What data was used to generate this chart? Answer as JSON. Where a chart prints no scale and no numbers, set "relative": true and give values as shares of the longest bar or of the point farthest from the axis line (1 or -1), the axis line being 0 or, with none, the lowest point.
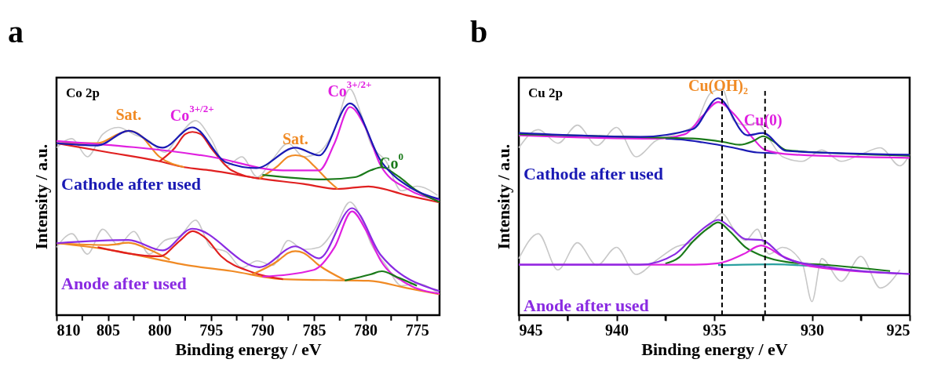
{
  "chart_data": [
    {
      "type": "line",
      "title": "a",
      "xlabel": "Binding energy / eV",
      "ylabel": "Intensity / a.u.",
      "relative": true,
      "grid": false,
      "tick_labels": "x",
      "xlim": [
        810,
        772.8
      ],
      "xticks": [
        810,
        {
          "value": 807.5,
          "label": null
        },
        805,
        {
          "value": 802.5,
          "label": null
        },
        800,
        {
          "value": 797.5,
          "label": null
        },
        795,
        {
          "value": 792.5,
          "label": null
        },
        790,
        {
          "value": 787.5,
          "label": null
        },
        785,
        {
          "value": 782.5,
          "label": null
        },
        780,
        {
          "value": 777.5,
          "label": null
        },
        775
      ],
      "annotations": [
        "Co 2p",
        {
          "text": "Sat.",
          "x": 803,
          "y": 0.815
        },
        {
          "text": "Co$^{3+/2+}$",
          "x": 796.8,
          "y": 0.81
        },
        {
          "text": "Sat.",
          "x": 786.8,
          "y": 0.707
        },
        {
          "text": "Co$^{3+/2+}$",
          "x": 781.5,
          "y": 0.92
        },
        {
          "text": "Co$^{0}$",
          "x": 776.5,
          "y": 0.6
        }
      ],
      "series": [
        {
          "color": "#c8c8c8",
          "x": [
            810,
            808.5,
            807,
            805.5,
            804,
            802.5,
            801,
            799.5,
            798,
            796.5,
            795,
            793.5,
            792,
            790.5,
            789,
            787.5,
            786,
            784.5,
            783,
            781.5,
            780.5,
            779.5,
            778,
            776.5,
            775,
            773
          ],
          "values": [
            0.74,
            0.78,
            0.7,
            0.8,
            0.83,
            0.8,
            0.77,
            0.72,
            0.8,
            0.86,
            0.78,
            0.66,
            0.7,
            0.61,
            0.69,
            0.76,
            0.7,
            0.72,
            0.82,
            1,
            0.9,
            0.76,
            0.68,
            0.55,
            0.57,
            0.53
          ]
        },
        {
          "color": "#c8c8c8",
          "x": [
            810,
            808.5,
            807,
            805.5,
            804,
            802.5,
            801,
            799.5,
            798,
            796.5,
            795,
            793.5,
            792,
            790.5,
            789,
            787.5,
            786,
            784.5,
            783,
            781.5,
            780.5,
            779.5,
            778,
            776.5,
            775,
            773
          ],
          "values": [
            0.3,
            0.36,
            0.27,
            0.38,
            0.31,
            0.37,
            0.27,
            0.33,
            0.35,
            0.42,
            0.3,
            0.28,
            0.21,
            0.24,
            0.22,
            0.33,
            0.29,
            0.3,
            0.38,
            0.5,
            0.44,
            0.32,
            0.22,
            0.13,
            0.14,
            0.1
          ]
        },
        {
          "color": "#e02020",
          "x": [
            810,
            805,
            800,
            797.6,
            795,
            790.3,
            786,
            782.7,
            779.7,
            776,
            772.8
          ],
          "values": [
            0.76,
            0.72,
            0.68,
            0.654,
            0.64,
            0.604,
            0.58,
            0.558,
            0.569,
            0.53,
            0.498
          ]
        },
        {
          "color": "#f08a24",
          "x": [
            810,
            806,
            804,
            803,
            802,
            800,
            797.6
          ],
          "values": [
            0.76,
            0.76,
            0.8,
            0.815,
            0.8,
            0.7,
            0.654
          ]
        },
        {
          "color": "#e02020",
          "x": [
            800,
            798.5,
            797.5,
            796.8,
            796,
            795,
            793,
            790.3
          ],
          "values": [
            0.68,
            0.74,
            0.8,
            0.81,
            0.8,
            0.74,
            0.64,
            0.604
          ]
        },
        {
          "color": "#f08a24",
          "x": [
            790.3,
            788.5,
            787.5,
            786.8,
            786,
            785,
            783.5,
            782.7
          ],
          "values": [
            0.604,
            0.66,
            0.7,
            0.707,
            0.7,
            0.66,
            0.59,
            0.558
          ]
        },
        {
          "color": "#e020e0",
          "x": [
            810,
            795,
            788,
            784.5,
            783,
            781.5,
            780,
            778.5,
            776,
            772.8
          ],
          "values": [
            0.77,
            0.7,
            0.64,
            0.64,
            0.76,
            0.92,
            0.83,
            0.66,
            0.56,
            0.51
          ]
        },
        {
          "color": "#1a7a1a",
          "x": [
            790,
            784,
            781,
            779.5,
            778.4,
            777,
            775,
            772.8
          ],
          "values": [
            0.62,
            0.6,
            0.61,
            0.64,
            0.654,
            0.62,
            0.55,
            0.5
          ]
        },
        {
          "name": "Cathode after used",
          "color": "#1a1ab4",
          "x": [
            810,
            806,
            803,
            799.7,
            796.8,
            793.5,
            790.6,
            786.8,
            784.5,
            781.5,
            778.4,
            775.5,
            772.8
          ],
          "values": [
            0.76,
            0.75,
            0.815,
            0.74,
            0.83,
            0.675,
            0.65,
            0.74,
            0.706,
            0.936,
            0.675,
            0.56,
            0.513
          ]
        },
        {
          "color": "#f08a24",
          "x": [
            810,
            805,
            800,
            797.6,
            793,
            788,
            784,
            779.7,
            776,
            772.8
          ],
          "values": [
            0.318,
            0.29,
            0.245,
            0.223,
            0.195,
            0.159,
            0.155,
            0.152,
            0.12,
            0.092
          ]
        },
        {
          "color": "#f08a24",
          "x": [
            810,
            805,
            803,
            801,
            799
          ],
          "values": [
            0.318,
            0.31,
            0.32,
            0.29,
            0.245
          ]
        },
        {
          "color": "#e02020",
          "x": [
            806,
            800,
            798,
            796.8,
            795.5,
            794,
            791,
            788
          ],
          "values": [
            0.3,
            0.26,
            0.33,
            0.371,
            0.34,
            0.26,
            0.19,
            0.159
          ]
        },
        {
          "color": "#f08a24",
          "x": [
            791,
            788.5,
            787.5,
            786.8,
            786,
            784.5,
            782
          ],
          "values": [
            0.18,
            0.24,
            0.275,
            0.283,
            0.275,
            0.22,
            0.155
          ]
        },
        {
          "color": "#e020e0",
          "x": [
            790,
            785,
            783,
            781.3,
            780,
            778.5,
            776,
            772.8
          ],
          "values": [
            0.17,
            0.2,
            0.3,
            0.459,
            0.38,
            0.24,
            0.14,
            0.095
          ]
        },
        {
          "color": "#1a7a1a",
          "x": [
            782,
            779.5,
            778.4,
            777,
            775
          ],
          "values": [
            0.153,
            0.18,
            0.194,
            0.17,
            0.13
          ]
        },
        {
          "name": "Anode after used",
          "color": "#8a2be2",
          "x": [
            810,
            803,
            799.7,
            796.8,
            790.3,
            786.8,
            784.5,
            781.3,
            778.5,
            772.8
          ],
          "values": [
            0.318,
            0.332,
            0.286,
            0.382,
            0.212,
            0.304,
            0.251,
            0.473,
            0.265,
            0.106
          ]
        }
      ]
    },
    {
      "type": "line",
      "title": "b",
      "xlabel": "Binding energy / eV",
      "ylabel": "Intensity / a.u.",
      "relative": true,
      "grid": false,
      "tick_labels": "x",
      "xlim": [
        945,
        925
      ],
      "xticks": [
        945,
        {
          "value": 942.5,
          "label": null
        },
        940,
        {
          "value": 937.5,
          "label": null
        },
        935,
        {
          "value": 932.5,
          "label": null
        },
        930,
        {
          "value": 927.5,
          "label": null
        },
        925
      ],
      "annotations": [
        "Cu 2p",
        {
          "text": "Cu(OH)₂",
          "x": 934.8,
          "y": 0.942
        },
        {
          "text": "Cu(0)",
          "x": 932.5,
          "y": 0.791
        }
      ],
      "ref_lines": [
        {
          "axis": "x",
          "value": 934.6,
          "line_style": "dashed",
          "color": "#000000"
        },
        {
          "axis": "x",
          "value": 932.4,
          "line_style": "dashed",
          "color": "#000000"
        }
      ],
      "series": [
        {
          "color": "#c8c8c8",
          "x": [
            945,
            944,
            943,
            942,
            941,
            940,
            939,
            938,
            937,
            936,
            935.2,
            934.6,
            934,
            933.4,
            932.8,
            932.2,
            931.5,
            930.5,
            929.5,
            928.5,
            927.5,
            926.5,
            925.5,
            925
          ],
          "values": [
            0.74,
            0.82,
            0.76,
            0.84,
            0.75,
            0.83,
            0.7,
            0.77,
            0.8,
            0.84,
            0.98,
            1,
            0.86,
            0.84,
            0.85,
            0.78,
            0.7,
            0.68,
            0.73,
            0.68,
            0.71,
            0.74,
            0.66,
            0.71
          ]
        },
        {
          "color": "#c8c8c8",
          "x": [
            945,
            944,
            943,
            942,
            941,
            940,
            939,
            938,
            937,
            936,
            935.2,
            934.6,
            934,
            933.4,
            932.8,
            932.2,
            931.5,
            930.5,
            930,
            929.5,
            928.5,
            927.5,
            926.5,
            925.5
          ],
          "values": [
            0.25,
            0.36,
            0.2,
            0.32,
            0.22,
            0.3,
            0.18,
            0.24,
            0.3,
            0.33,
            0.4,
            0.45,
            0.38,
            0.33,
            0.38,
            0.27,
            0.3,
            0.23,
            0.06,
            0.25,
            0.15,
            0.26,
            0.12,
            0.2
          ]
        },
        {
          "color": "#1a1ab4",
          "x": [
            937.5,
            936.5,
            935.6,
            934,
            932.8,
            931.8
          ],
          "values": [
            0.78,
            0.775,
            0.764,
            0.74,
            0.719,
            0.716
          ]
        },
        {
          "color": "#e020e0",
          "x": [
            945,
            938,
            936.5,
            935.6,
            934.8,
            934,
            933,
            932.4,
            931,
            925
          ],
          "values": [
            0.795,
            0.78,
            0.8,
            0.88,
            0.942,
            0.89,
            0.78,
            0.73,
            0.71,
            0.695
          ]
        },
        {
          "color": "#1a7a1a",
          "x": [
            945,
            938,
            936.1,
            934.5,
            933.7,
            933,
            932.5,
            932,
            931.3,
            925
          ],
          "values": [
            0.8,
            0.785,
            0.781,
            0.765,
            0.753,
            0.77,
            0.791,
            0.77,
            0.729,
            0.705
          ]
        },
        {
          "name": "Cathode after used",
          "color": "#1a1ab4",
          "x": [
            945,
            938.8,
            936.1,
            934.8,
            933.3,
            932.5,
            931.3,
            925
          ],
          "values": [
            0.805,
            0.788,
            0.822,
            0.959,
            0.795,
            0.805,
            0.726,
            0.709
          ]
        },
        {
          "color": "#2aa0a0",
          "x": [
            934.8,
            932,
            929.5
          ],
          "values": [
            0.221,
            0.225,
            0.213
          ]
        },
        {
          "color": "#1a7a1a",
          "x": [
            937.5,
            936.8,
            936.1,
            935.3,
            934.8,
            934.2,
            933.4,
            932.6,
            931.3,
            929,
            926
          ],
          "values": [
            0.228,
            0.255,
            0.325,
            0.385,
            0.41,
            0.37,
            0.3,
            0.264,
            0.235,
            0.22,
            0.195
          ]
        },
        {
          "color": "#e020e0",
          "x": [
            945,
            936,
            934.8,
            933.5,
            932.6,
            931.5,
            930,
            925
          ],
          "values": [
            0.223,
            0.223,
            0.229,
            0.27,
            0.308,
            0.26,
            0.215,
            0.182
          ]
        },
        {
          "name": "Anode after used",
          "color": "#8a2be2",
          "x": [
            945,
            938.8,
            937,
            936.1,
            935.3,
            934.8,
            934.2,
            933.4,
            932.6,
            931.3,
            929,
            925
          ],
          "values": [
            0.223,
            0.223,
            0.27,
            0.342,
            0.4,
            0.421,
            0.39,
            0.336,
            0.332,
            0.25,
            0.21,
            0.182
          ]
        }
      ]
    }
  ]
}
